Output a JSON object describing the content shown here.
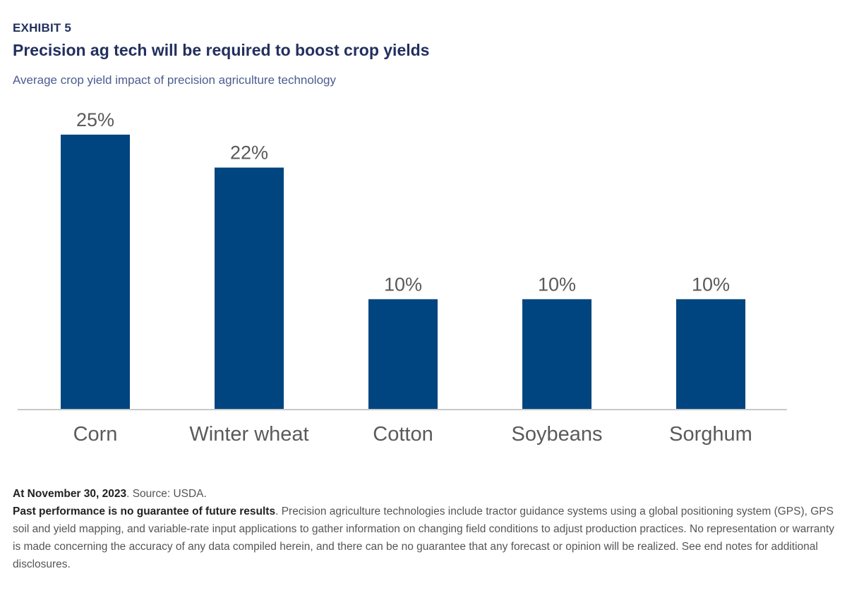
{
  "header": {
    "exhibit": "EXHIBIT 5",
    "title": "Precision ag tech will be required to boost crop yields",
    "subtitle": "Average crop yield impact of precision agriculture technology"
  },
  "chart_data": {
    "type": "bar",
    "title": "Precision ag tech will be required to boost crop yields",
    "subtitle": "Average crop yield impact of precision agriculture technology",
    "categories": [
      "Corn",
      "Winter wheat",
      "Cotton",
      "Soybeans",
      "Sorghum"
    ],
    "values": [
      25,
      22,
      10,
      10,
      10
    ],
    "value_labels": [
      "25%",
      "22%",
      "10%",
      "10%",
      "10%"
    ],
    "unit": "%",
    "xlabel": "",
    "ylabel": "",
    "ylim": [
      0,
      25
    ],
    "grid": false,
    "legend": "none",
    "bar_color": "#00457f"
  },
  "footer": {
    "date_bold": "At November 30, 2023",
    "source": ". Source: USDA.",
    "disclaimer_bold": "Past performance is no guarantee of future results",
    "disclaimer_text": ". Precision agriculture technologies include tractor guidance systems using a global positioning system (GPS), GPS soil and yield mapping, and variable-rate input applications to gather information on changing field conditions to adjust production practices. No representation or warranty is made concerning the accuracy of any data compiled herein, and there can be no guarantee that any forecast or opinion will be realized. See end notes for additional disclosures."
  }
}
